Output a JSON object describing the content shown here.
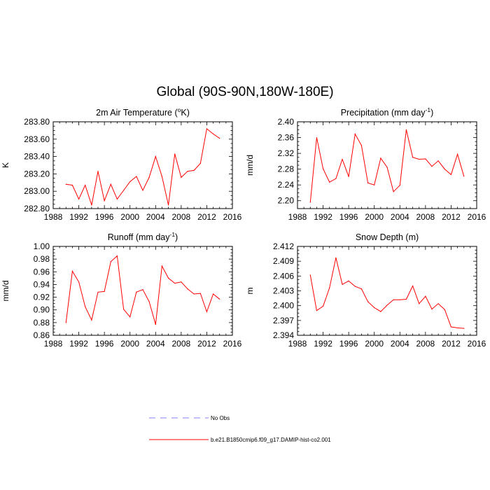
{
  "main_title": "Global (90S-90N,180W-180E)",
  "legend": [
    {
      "label": "No Obs",
      "color": "#8080ff",
      "style": "dashed"
    },
    {
      "label": "b.e21.B1850cmip6.f09_g17.DAMIP-hist-co2.001",
      "color": "#ff0000",
      "style": "solid"
    }
  ],
  "chart_data": [
    {
      "type": "line",
      "title": "2m Air Temperature (",
      "title_sup": "o",
      "title_end": "K)",
      "ylabel": "K",
      "xlim": [
        1988,
        2016
      ],
      "xticks": [
        1988,
        1992,
        1996,
        2000,
        2004,
        2008,
        2012,
        2016
      ],
      "ylim": [
        282.8,
        283.8
      ],
      "yticks": [
        "282.80",
        "283.00",
        "283.20",
        "283.40",
        "283.60",
        "283.80"
      ],
      "color": "#ff0000",
      "x": [
        1990,
        1991,
        1992,
        1993,
        1994,
        1995,
        1996,
        1997,
        1998,
        1999,
        2000,
        2001,
        2002,
        2003,
        2004,
        2005,
        2006,
        2007,
        2008,
        2009,
        2010,
        2011,
        2012,
        2013,
        2014
      ],
      "values": [
        283.08,
        283.07,
        282.91,
        283.07,
        282.84,
        283.23,
        282.89,
        283.08,
        282.91,
        283.01,
        283.11,
        283.17,
        283.01,
        283.16,
        283.4,
        283.17,
        282.84,
        283.43,
        283.16,
        283.23,
        283.24,
        283.32,
        283.72,
        283.66,
        283.61
      ]
    },
    {
      "type": "line",
      "title": "Precipitation (mm day",
      "title_sup": "-1",
      "title_end": ")",
      "ylabel": "mm/d",
      "xlim": [
        1988,
        2016
      ],
      "xticks": [
        1988,
        1992,
        1996,
        2000,
        2004,
        2008,
        2012,
        2016
      ],
      "ylim": [
        2.18,
        2.4
      ],
      "yticks": [
        "2.20",
        "2.24",
        "2.28",
        "2.32",
        "2.36",
        "2.40"
      ],
      "color": "#ff0000",
      "x": [
        1990,
        1991,
        1992,
        1993,
        1994,
        1995,
        1996,
        1997,
        1998,
        1999,
        2000,
        2001,
        2002,
        2003,
        2004,
        2005,
        2006,
        2007,
        2008,
        2009,
        2010,
        2011,
        2012,
        2013,
        2014
      ],
      "values": [
        2.196,
        2.36,
        2.281,
        2.247,
        2.256,
        2.305,
        2.261,
        2.369,
        2.34,
        2.245,
        2.24,
        2.308,
        2.285,
        2.223,
        2.239,
        2.38,
        2.31,
        2.305,
        2.306,
        2.287,
        2.301,
        2.28,
        2.266,
        2.318,
        2.262
      ]
    },
    {
      "type": "line",
      "title": "Runoff (mm day",
      "title_sup": "-1",
      "title_end": ")",
      "ylabel": "mm/d",
      "xlim": [
        1988,
        2016
      ],
      "xticks": [
        1988,
        1992,
        1996,
        2000,
        2004,
        2008,
        2012,
        2016
      ],
      "ylim": [
        0.86,
        1.0
      ],
      "yticks": [
        "0.86",
        "0.88",
        "0.90",
        "0.92",
        "0.94",
        "0.96",
        "0.98",
        "1.00"
      ],
      "color": "#ff0000",
      "x": [
        1990,
        1991,
        1992,
        1993,
        1994,
        1995,
        1996,
        1997,
        1998,
        1999,
        2000,
        2001,
        2002,
        2003,
        2004,
        2005,
        2006,
        2007,
        2008,
        2009,
        2010,
        2011,
        2012,
        2013,
        2014
      ],
      "values": [
        0.88,
        0.961,
        0.944,
        0.905,
        0.884,
        0.928,
        0.929,
        0.976,
        0.985,
        0.901,
        0.889,
        0.928,
        0.932,
        0.913,
        0.877,
        0.969,
        0.95,
        0.942,
        0.944,
        0.933,
        0.925,
        0.926,
        0.897,
        0.925,
        0.917
      ]
    },
    {
      "type": "line",
      "title": "Snow Depth (m)",
      "title_sup": "",
      "title_end": "",
      "ylabel": "m",
      "xlim": [
        1988,
        2016
      ],
      "xticks": [
        1988,
        1992,
        1996,
        2000,
        2004,
        2008,
        2012,
        2016
      ],
      "ylim": [
        2.394,
        2.412
      ],
      "yticks": [
        "2.394",
        "2.397",
        "2.400",
        "2.403",
        "2.406",
        "2.409",
        "2.412"
      ],
      "color": "#ff0000",
      "x": [
        1990,
        1991,
        1992,
        1993,
        1994,
        1995,
        1996,
        1997,
        1998,
        1999,
        2000,
        2001,
        2002,
        2003,
        2004,
        2005,
        2006,
        2007,
        2008,
        2009,
        2010,
        2011,
        2012,
        2013,
        2014
      ],
      "values": [
        2.4062,
        2.399,
        2.3999,
        2.4036,
        2.4097,
        2.4043,
        2.405,
        2.4039,
        2.4034,
        2.4008,
        2.3996,
        2.3988,
        2.4001,
        2.4012,
        2.4012,
        2.4013,
        2.404,
        2.4004,
        2.4019,
        2.3993,
        2.4004,
        2.3992,
        2.3957,
        2.3955,
        2.3954
      ]
    }
  ]
}
